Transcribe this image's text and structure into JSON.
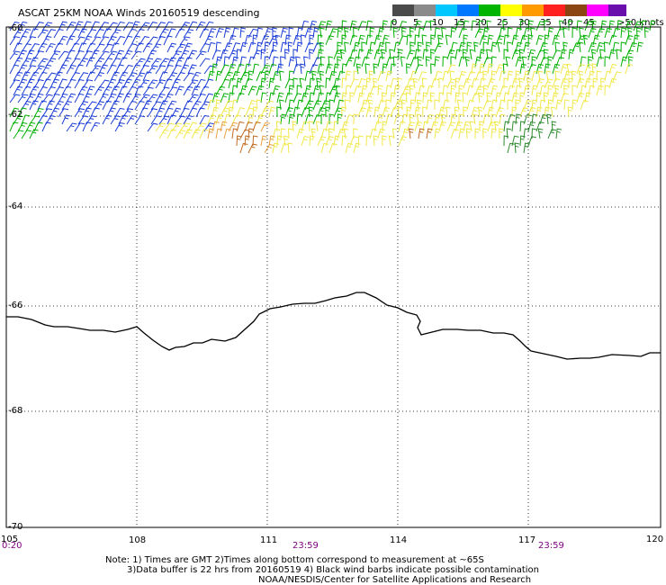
{
  "title": "ASCAT 25KM NOAA Winds 20160519 descending",
  "legend": {
    "labels": [
      "0",
      "5",
      "10",
      "15",
      "20",
      "25",
      "30",
      "35",
      "40",
      "45",
      ">50 knots"
    ],
    "colors": [
      "#4a4a4a",
      "#8a8a8a",
      "#00c8ff",
      "#0078ff",
      "#00b400",
      "#ffff00",
      "#ff9a00",
      "#ff2020",
      "#8b4513",
      "#ff00ff",
      "#6a0dad"
    ]
  },
  "map": {
    "lon_labels": [
      "105",
      "108",
      "111",
      "114",
      "117",
      "120"
    ],
    "lat_labels": [
      "-60",
      "-62",
      "-64",
      "-66",
      "-68",
      "-70"
    ],
    "time_labels": [
      "0:20",
      "23:59",
      "23:59"
    ],
    "coastline_color": "#000000",
    "grid": "dotted"
  },
  "notes": {
    "line1": "Note: 1) Times are GMT 2)Times along bottom correspond to measurement at ~65S",
    "line2": "3)Data buffer is 22 hrs from 20160519 4) Black wind barbs indicate possible contamination",
    "line3": "NOAA/NESDIS/Center for Satellite Applications and Research"
  }
}
